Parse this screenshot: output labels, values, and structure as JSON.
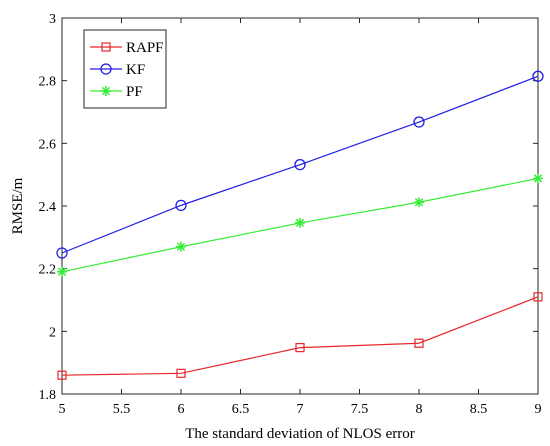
{
  "chart_data": {
    "type": "line",
    "title": "",
    "xlabel": "The standard deviation of NLOS error",
    "ylabel": "RMSE/m",
    "xlim": [
      5,
      9
    ],
    "ylim": [
      1.8,
      3
    ],
    "xticks": [
      "5",
      "5.5",
      "6",
      "6.5",
      "7",
      "7.5",
      "8",
      "8.5",
      "9"
    ],
    "yticks": [
      "1.8",
      "2",
      "2.2",
      "2.4",
      "2.6",
      "2.8",
      "3"
    ],
    "grid": false,
    "legend_position": "top-left",
    "x": [
      5,
      6,
      7,
      8,
      9
    ],
    "series": [
      {
        "name": "RAPF",
        "color": "#e8262a",
        "marker": "square",
        "values": [
          1.86,
          1.866,
          1.948,
          1.962,
          2.11
        ]
      },
      {
        "name": "KF",
        "color": "#1f1fe6",
        "marker": "circle",
        "values": [
          2.25,
          2.402,
          2.532,
          2.668,
          2.814
        ]
      },
      {
        "name": "PF",
        "color": "#33ee33",
        "marker": "asterisk",
        "values": [
          2.19,
          2.27,
          2.346,
          2.412,
          2.488
        ]
      }
    ]
  }
}
